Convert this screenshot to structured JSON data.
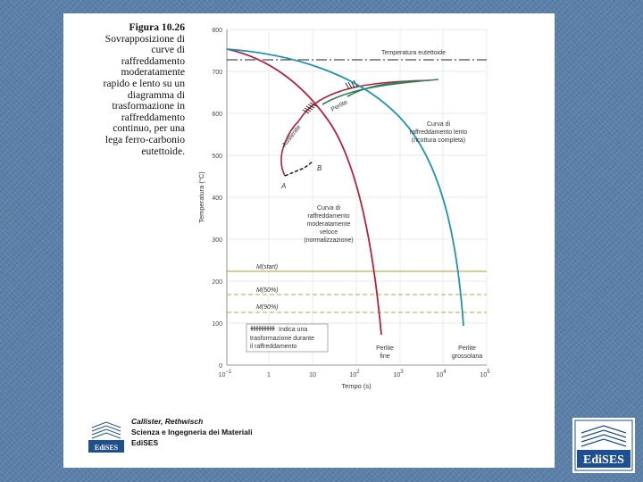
{
  "caption": {
    "title": "Figura 10.26",
    "lines": [
      "Sovrapposizione di",
      "curve di",
      "raffreddamento",
      "moderatamente",
      "rapido e lento su un",
      "diagramma di",
      "trasformazione in",
      "raffreddamento",
      "continuo, per una",
      "lega ferro-carbonio",
      "eutettoide."
    ]
  },
  "diagram": {
    "y_axis_label": "Temperatura (°C)",
    "x_axis_label": "Tempo (s)",
    "y_ticks": [
      "800",
      "700",
      "600",
      "500",
      "400",
      "300",
      "200",
      "100",
      "0"
    ],
    "x_ticks": [
      "10",
      "1",
      "10",
      "10",
      "10",
      "10",
      "10"
    ],
    "x_tick_exponents": [
      "−1",
      "",
      "",
      "2",
      "3",
      "4",
      "5"
    ],
    "eutectoid_label": "Temperatura eutettoide",
    "austenite_label": "Austenite",
    "pearlite_label": "Perlite",
    "point_a": "A",
    "point_b": "B",
    "slow_curve_label": [
      "Curva di",
      "raffreddamento lento",
      "(ricottura completa)"
    ],
    "moderate_curve_label": [
      "Curva di",
      "raffreddamento",
      "moderatamente",
      "veloce",
      "(normalizzazione)"
    ],
    "ms_start": "M(start)",
    "m50": "M(50%)",
    "m90": "M(90%)",
    "legend_lines": [
      "Indica una",
      "trasformazione durante",
      "il raffreddamento"
    ],
    "fine_pearlite": [
      "Perlite",
      "fine"
    ],
    "coarse_pearlite": [
      "Perlite",
      "grossolana"
    ]
  },
  "footer": {
    "authors": "Callister, Rethwisch",
    "book": "Scienza e Ingegneria dei Materiali",
    "publisher": "EdiSES",
    "logo_text": "EdiSES"
  },
  "corner_logo": {
    "text": "EdiSES"
  },
  "colors": {
    "background": "#5b80aa",
    "red_curve": "#b5203a",
    "blue_curve": "#1f93b0",
    "green_curve": "#2f7f5c",
    "ms_line": "#b89a2a"
  }
}
